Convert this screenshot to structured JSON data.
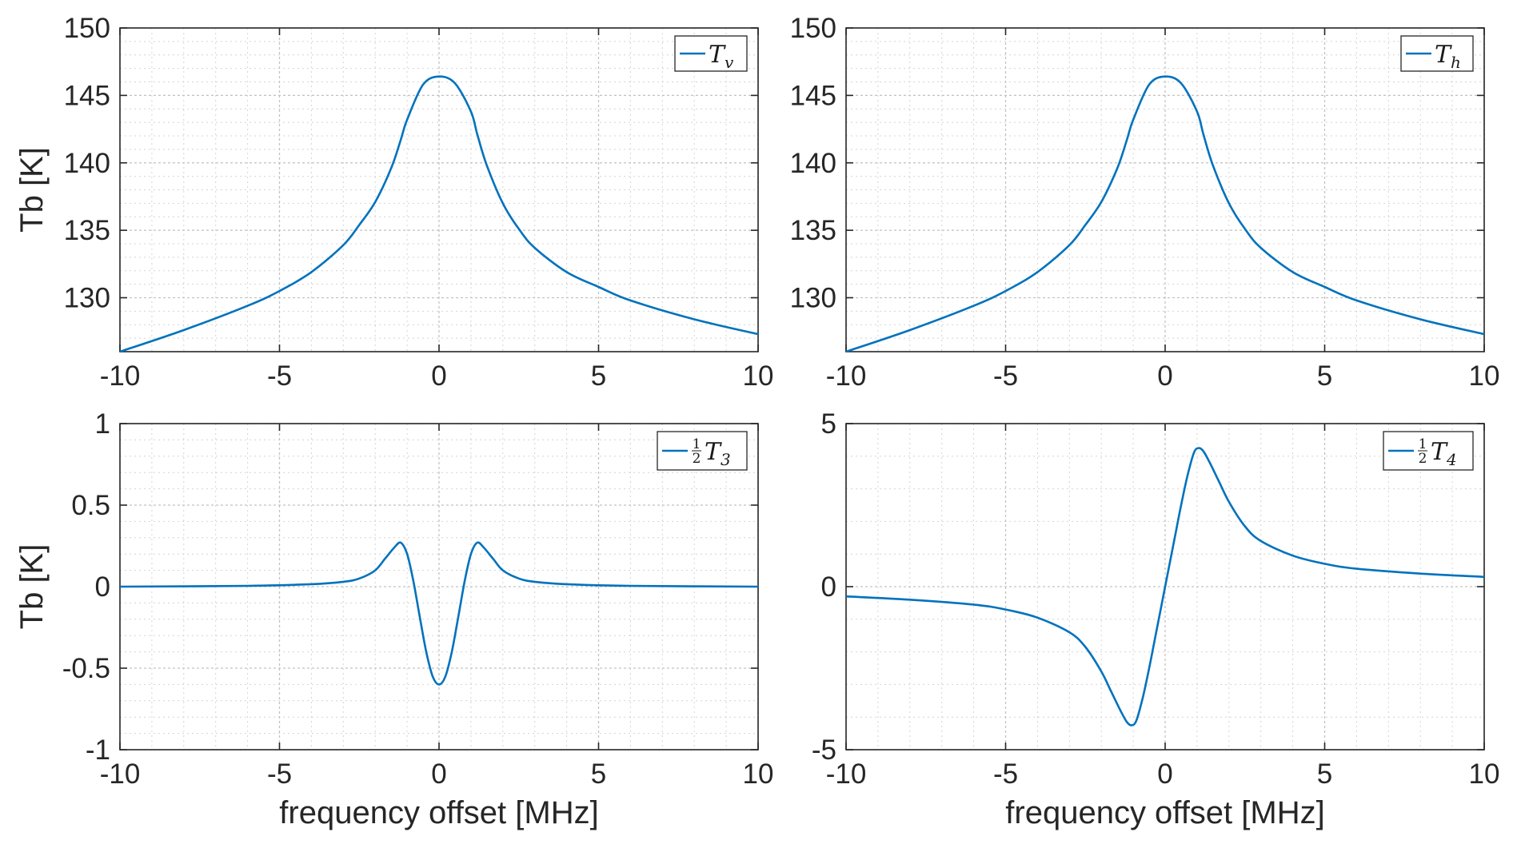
{
  "chart_data": [
    {
      "type": "line",
      "xlabel": "",
      "ylabel": "Tb [K]",
      "xlim": [
        -10,
        10
      ],
      "ylim": [
        126,
        150
      ],
      "xticks": [
        -10,
        -5,
        0,
        5,
        10
      ],
      "xtick_labels": [
        "-10",
        "-5",
        "0",
        "5",
        "10"
      ],
      "yticks": [
        130,
        135,
        140,
        145,
        150
      ],
      "ytick_labels": [
        "130",
        "135",
        "140",
        "145",
        "150"
      ],
      "grid": true,
      "minor_grid": true,
      "legend_position": "top-right",
      "series": [
        {
          "name": "T_v",
          "legend": {
            "main": "T",
            "sub": "v",
            "frac": false
          },
          "color": "#0072BD",
          "x": [
            -10,
            -8,
            -6,
            -5,
            -4,
            -3,
            -2.5,
            -2,
            -1.5,
            -1.2,
            -1,
            -0.5,
            0,
            0.5,
            1,
            1.2,
            1.5,
            2,
            2.5,
            3,
            4,
            5,
            6,
            8,
            10
          ],
          "y": [
            126.0,
            127.6,
            129.4,
            130.5,
            131.9,
            133.9,
            135.4,
            137.1,
            139.6,
            141.7,
            143.2,
            145.8,
            146.4,
            145.9,
            143.8,
            142.1,
            139.8,
            137.0,
            135.1,
            133.7,
            131.9,
            130.8,
            129.8,
            128.4,
            127.3
          ]
        }
      ]
    },
    {
      "type": "line",
      "xlabel": "",
      "ylabel": "",
      "xlim": [
        -10,
        10
      ],
      "ylim": [
        126,
        150
      ],
      "xticks": [
        -10,
        -5,
        0,
        5,
        10
      ],
      "xtick_labels": [
        "-10",
        "-5",
        "0",
        "5",
        "10"
      ],
      "yticks": [
        130,
        135,
        140,
        145,
        150
      ],
      "ytick_labels": [
        "130",
        "135",
        "140",
        "145",
        "150"
      ],
      "grid": true,
      "minor_grid": true,
      "legend_position": "top-right",
      "series": [
        {
          "name": "T_h",
          "legend": {
            "main": "T",
            "sub": "h",
            "frac": false
          },
          "color": "#0072BD",
          "x": [
            -10,
            -8,
            -6,
            -5,
            -4,
            -3,
            -2.5,
            -2,
            -1.5,
            -1.2,
            -1,
            -0.5,
            0,
            0.5,
            1,
            1.2,
            1.5,
            2,
            2.5,
            3,
            4,
            5,
            6,
            8,
            10
          ],
          "y": [
            126.0,
            127.6,
            129.4,
            130.5,
            131.9,
            133.9,
            135.4,
            137.1,
            139.6,
            141.7,
            143.2,
            145.8,
            146.4,
            145.9,
            143.8,
            142.1,
            139.8,
            137.0,
            135.1,
            133.7,
            131.9,
            130.8,
            129.8,
            128.4,
            127.3
          ]
        }
      ]
    },
    {
      "type": "line",
      "xlabel": "frequency offset [MHz]",
      "ylabel": "Tb [K]",
      "xlim": [
        -10,
        10
      ],
      "ylim": [
        -1,
        1
      ],
      "xticks": [
        -10,
        -5,
        0,
        5,
        10
      ],
      "xtick_labels": [
        "-10",
        "-5",
        "0",
        "5",
        "10"
      ],
      "yticks": [
        -1,
        -0.5,
        0,
        0.5,
        1
      ],
      "ytick_labels": [
        "-1",
        "-0.5",
        "0",
        "0.5",
        "1"
      ],
      "grid": true,
      "minor_grid": true,
      "legend_position": "top-right",
      "series": [
        {
          "name": "½T_3",
          "legend": {
            "main": "T",
            "sub": "3",
            "frac": true
          },
          "color": "#0072BD",
          "x": [
            -10,
            -6,
            -4,
            -3,
            -2.5,
            -2,
            -1.7,
            -1.4,
            -1.2,
            -1.0,
            -0.8,
            -0.6,
            -0.4,
            -0.2,
            0,
            0.2,
            0.4,
            0.6,
            0.8,
            1.0,
            1.2,
            1.4,
            1.7,
            2,
            2.5,
            3,
            4,
            6,
            10
          ],
          "y": [
            0.0,
            0.005,
            0.015,
            0.03,
            0.05,
            0.1,
            0.17,
            0.24,
            0.27,
            0.2,
            0.03,
            -0.19,
            -0.4,
            -0.55,
            -0.6,
            -0.55,
            -0.4,
            -0.19,
            0.03,
            0.2,
            0.27,
            0.24,
            0.17,
            0.1,
            0.05,
            0.03,
            0.015,
            0.005,
            0.0
          ]
        }
      ]
    },
    {
      "type": "line",
      "xlabel": "frequency offset [MHz]",
      "ylabel": "",
      "xlim": [
        -10,
        10
      ],
      "ylim": [
        -5,
        5
      ],
      "xticks": [
        -10,
        -5,
        0,
        5,
        10
      ],
      "xtick_labels": [
        "-10",
        "-5",
        "0",
        "5",
        "10"
      ],
      "yticks": [
        -5,
        0,
        5
      ],
      "ytick_labels": [
        "-5",
        "0",
        "5"
      ],
      "grid": true,
      "minor_grid": true,
      "legend_position": "top-right",
      "series": [
        {
          "name": "½T_4",
          "legend": {
            "main": "T",
            "sub": "4",
            "frac": true
          },
          "color": "#0072BD",
          "x": [
            -10,
            -8,
            -6,
            -5,
            -4,
            -3,
            -2.5,
            -2,
            -1.7,
            -1.4,
            -1.2,
            -1.05,
            -0.9,
            -0.7,
            -0.5,
            -0.3,
            0,
            0.3,
            0.5,
            0.7,
            0.9,
            1.05,
            1.2,
            1.4,
            1.7,
            2,
            2.5,
            3,
            4,
            5,
            6,
            8,
            10
          ],
          "y": [
            -0.3,
            -0.4,
            -0.55,
            -0.7,
            -0.95,
            -1.4,
            -1.85,
            -2.6,
            -3.2,
            -3.8,
            -4.15,
            -4.25,
            -4.1,
            -3.4,
            -2.5,
            -1.5,
            0.0,
            1.5,
            2.5,
            3.4,
            4.1,
            4.25,
            4.15,
            3.8,
            3.2,
            2.6,
            1.85,
            1.4,
            0.95,
            0.7,
            0.55,
            0.4,
            0.3
          ]
        }
      ]
    }
  ]
}
